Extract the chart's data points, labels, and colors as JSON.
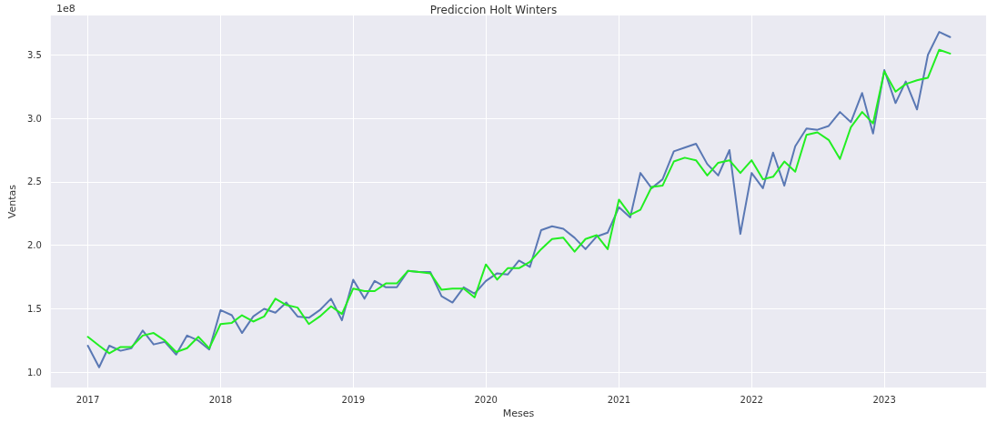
{
  "chart_data": {
    "type": "line",
    "title": "Prediccion Holt Winters",
    "xlabel": "Meses",
    "ylabel": "Ventas",
    "annotations": [
      "1e8"
    ],
    "x": [
      "2017-01",
      "2017-02",
      "2017-03",
      "2017-04",
      "2017-05",
      "2017-06",
      "2017-07",
      "2017-08",
      "2017-09",
      "2017-10",
      "2017-11",
      "2017-12",
      "2018-01",
      "2018-02",
      "2018-03",
      "2018-04",
      "2018-05",
      "2018-06",
      "2018-07",
      "2018-08",
      "2018-09",
      "2018-10",
      "2018-11",
      "2018-12",
      "2019-01",
      "2019-02",
      "2019-03",
      "2019-04",
      "2019-05",
      "2019-06",
      "2019-07",
      "2019-08",
      "2019-09",
      "2019-10",
      "2019-11",
      "2019-12",
      "2020-01",
      "2020-02",
      "2020-03",
      "2020-04",
      "2020-05",
      "2020-06",
      "2020-07",
      "2020-08",
      "2020-09",
      "2020-10",
      "2020-11",
      "2020-12",
      "2021-01",
      "2021-02",
      "2021-03",
      "2021-04",
      "2021-05",
      "2021-06",
      "2021-07",
      "2021-08",
      "2021-09",
      "2021-10",
      "2021-11",
      "2021-12",
      "2022-01",
      "2022-02",
      "2022-03",
      "2022-04",
      "2022-05",
      "2022-06",
      "2022-07",
      "2022-08",
      "2022-09",
      "2022-10",
      "2022-11",
      "2022-12",
      "2023-01",
      "2023-02",
      "2023-03",
      "2023-04",
      "2023-05",
      "2023-06",
      "2023-07"
    ],
    "series": [
      {
        "color": "#5a78b4",
        "values": [
          1.21,
          1.04,
          1.21,
          1.17,
          1.19,
          1.33,
          1.22,
          1.24,
          1.14,
          1.29,
          1.25,
          1.18,
          1.49,
          1.45,
          1.31,
          1.44,
          1.5,
          1.47,
          1.55,
          1.44,
          1.43,
          1.49,
          1.58,
          1.41,
          1.73,
          1.58,
          1.72,
          1.67,
          1.67,
          1.8,
          1.79,
          1.79,
          1.6,
          1.55,
          1.67,
          1.62,
          1.72,
          1.78,
          1.77,
          1.88,
          1.83,
          2.12,
          2.15,
          2.13,
          2.06,
          1.97,
          2.07,
          2.1,
          2.3,
          2.22,
          2.57,
          2.45,
          2.52,
          2.74,
          2.77,
          2.8,
          2.64,
          2.55,
          2.75,
          2.09,
          2.57,
          2.45,
          2.73,
          2.47,
          2.78,
          2.92,
          2.91,
          2.94,
          3.05,
          2.97,
          3.2,
          2.88,
          3.38,
          3.12,
          3.29,
          3.07,
          3.5,
          3.68,
          3.64
        ]
      },
      {
        "color": "#22ee22",
        "values": [
          1.28,
          1.21,
          1.15,
          1.2,
          1.2,
          1.29,
          1.31,
          1.25,
          1.16,
          1.19,
          1.28,
          1.19,
          1.38,
          1.39,
          1.45,
          1.4,
          1.44,
          1.58,
          1.53,
          1.51,
          1.38,
          1.44,
          1.52,
          1.46,
          1.66,
          1.64,
          1.64,
          1.7,
          1.7,
          1.8,
          1.79,
          1.78,
          1.65,
          1.66,
          1.66,
          1.59,
          1.85,
          1.73,
          1.82,
          1.82,
          1.87,
          1.97,
          2.05,
          2.06,
          1.95,
          2.05,
          2.08,
          1.97,
          2.36,
          2.24,
          2.28,
          2.46,
          2.47,
          2.66,
          2.69,
          2.67,
          2.55,
          2.65,
          2.67,
          2.57,
          2.67,
          2.52,
          2.54,
          2.66,
          2.58,
          2.87,
          2.89,
          2.83,
          2.68,
          2.93,
          3.05,
          2.96,
          3.37,
          3.21,
          3.27,
          3.3,
          3.32,
          3.54,
          3.51
        ]
      }
    ],
    "xlim": [
      "2016-09-21",
      "2023-10-08"
    ],
    "xticks": [
      "2017",
      "2018",
      "2019",
      "2020",
      "2021",
      "2022",
      "2023"
    ],
    "ylim": [
      0.88,
      3.81
    ],
    "yticks": [
      {
        "value": 1,
        "label": "1.0"
      },
      1.5,
      {
        "value": 2,
        "label": "2.0"
      },
      2.5,
      {
        "value": 3,
        "label": "3.0"
      },
      3.5
    ],
    "grid": true,
    "marker": "none",
    "line_style": "solid"
  }
}
